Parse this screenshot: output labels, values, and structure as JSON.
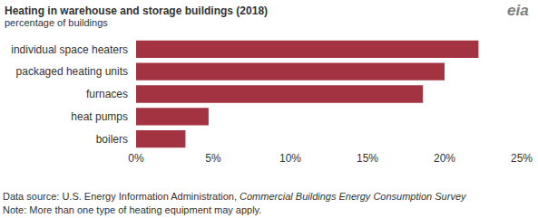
{
  "chart_data": {
    "type": "bar",
    "orientation": "horizontal",
    "title": "Heating in warehouse and storage buildings (2018)",
    "subtitle": "percentage of buildings",
    "logo": "eia",
    "categories": [
      "individual space heaters",
      "packaged heating units",
      "furnaces",
      "heat pumps",
      "boilers"
    ],
    "values": [
      22.2,
      20.0,
      18.6,
      4.7,
      3.2
    ],
    "color": "#a33340",
    "xlim": [
      0,
      25
    ],
    "xticks": [
      {
        "value": 0,
        "label": "0%"
      },
      {
        "value": 5,
        "label": "5%"
      },
      {
        "value": 10,
        "label": "10%"
      },
      {
        "value": 15,
        "label": "15%"
      },
      {
        "value": 20,
        "label": "20%"
      },
      {
        "value": 25,
        "label": "25%"
      }
    ],
    "grid": false,
    "source": [
      "Data source: U.S. Energy Information Administration, ",
      "Commercial Buildings Energy Consumption Survey"
    ],
    "note": "Note: More than one type of heating equipment may apply."
  }
}
